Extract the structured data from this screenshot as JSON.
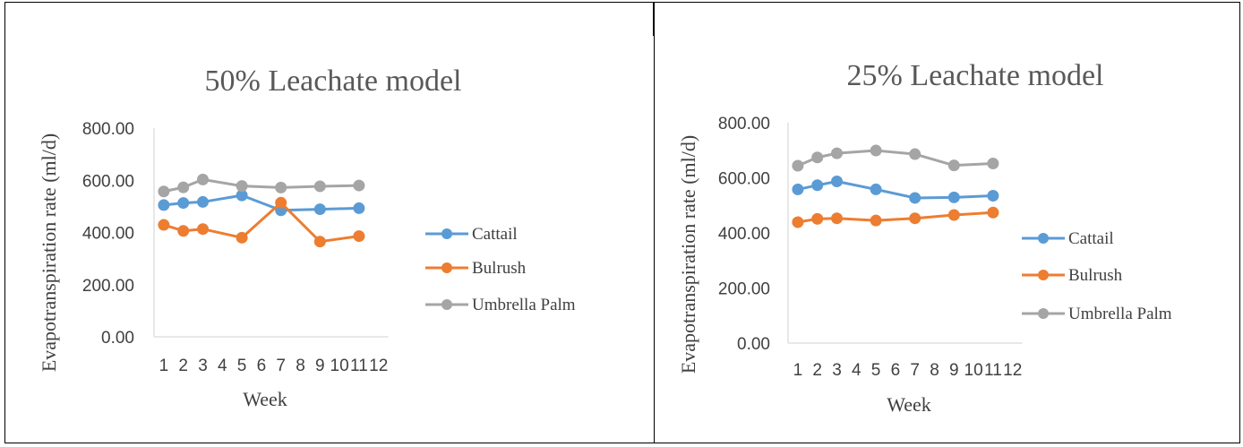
{
  "chart_data": [
    {
      "type": "line",
      "title": "50% Leachate model",
      "xlabel": "Week",
      "ylabel": "Evapotranspiration rate (ml/d)",
      "categories": [
        "1",
        "2",
        "3",
        "4",
        "5",
        "6",
        "7",
        "8",
        "9",
        "10",
        "11",
        "12"
      ],
      "yticks": [
        "0.00",
        "200.00",
        "400.00",
        "600.00",
        "800.00"
      ],
      "ylim": [
        0,
        800
      ],
      "legend": "right",
      "grid": false,
      "series": [
        {
          "name": "Cattail",
          "color": "#5B9BD5",
          "points": [
            [
              1,
              505
            ],
            [
              2,
              513
            ],
            [
              3,
              517
            ],
            [
              5,
              542
            ],
            [
              7,
              485
            ],
            [
              9,
              489
            ],
            [
              11,
              493
            ]
          ]
        },
        {
          "name": "Bulrush",
          "color": "#ED7D31",
          "points": [
            [
              1,
              429
            ],
            [
              2,
              406
            ],
            [
              3,
              413
            ],
            [
              5,
              380
            ],
            [
              7,
              514
            ],
            [
              9,
              365
            ],
            [
              11,
              386
            ]
          ]
        },
        {
          "name": "Umbrella Palm",
          "color": "#A5A5A5",
          "points": [
            [
              1,
              557
            ],
            [
              2,
              573
            ],
            [
              3,
              603
            ],
            [
              5,
              578
            ],
            [
              7,
              572
            ],
            [
              9,
              577
            ],
            [
              11,
              580
            ]
          ]
        }
      ]
    },
    {
      "type": "line",
      "title": "25% Leachate model",
      "xlabel": "Week",
      "ylabel": "Evapotranspiration rate (ml/d)",
      "categories": [
        "1",
        "2",
        "3",
        "4",
        "5",
        "6",
        "7",
        "8",
        "9",
        "10",
        "11",
        "12"
      ],
      "yticks": [
        "0.00",
        "200.00",
        "400.00",
        "600.00",
        "800.00"
      ],
      "ylim": [
        0,
        800
      ],
      "legend": "right",
      "grid": false,
      "series": [
        {
          "name": "Cattail",
          "color": "#5B9BD5",
          "points": [
            [
              1,
              558
            ],
            [
              2,
              573
            ],
            [
              3,
              587
            ],
            [
              5,
              558
            ],
            [
              7,
              527
            ],
            [
              9,
              529
            ],
            [
              11,
              535
            ]
          ]
        },
        {
          "name": "Bulrush",
          "color": "#ED7D31",
          "points": [
            [
              1,
              439
            ],
            [
              2,
              451
            ],
            [
              3,
              453
            ],
            [
              5,
              445
            ],
            [
              7,
              453
            ],
            [
              9,
              465
            ],
            [
              11,
              474
            ]
          ]
        },
        {
          "name": "Umbrella Palm",
          "color": "#A5A5A5",
          "points": [
            [
              1,
              644
            ],
            [
              2,
              674
            ],
            [
              3,
              689
            ],
            [
              5,
              699
            ],
            [
              7,
              686
            ],
            [
              9,
              645
            ],
            [
              11,
              652
            ]
          ]
        }
      ]
    }
  ]
}
